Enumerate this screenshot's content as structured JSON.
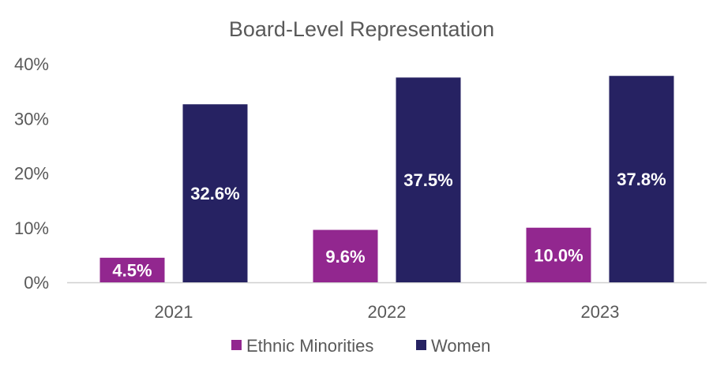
{
  "chart_data": {
    "type": "bar",
    "title": "Board-Level Representation",
    "xlabel": "",
    "ylabel": "",
    "categories": [
      "2021",
      "2022",
      "2023"
    ],
    "series": [
      {
        "name": "Ethnic Minorities",
        "color": "#92278F",
        "values": [
          4.5,
          9.6,
          10.0
        ],
        "labels": [
          "4.5%",
          "9.6%",
          "10.0%"
        ]
      },
      {
        "name": "Women",
        "color": "#262262",
        "values": [
          32.6,
          37.5,
          37.8
        ],
        "labels": [
          "32.6%",
          "37.5%",
          "37.8%"
        ]
      }
    ],
    "ylim": [
      0,
      40
    ],
    "yticks": [
      0,
      10,
      20,
      30,
      40
    ],
    "ytick_labels": [
      "0%",
      "10%",
      "20%",
      "30%",
      "40%"
    ],
    "grid": false,
    "legend_position": "bottom"
  }
}
